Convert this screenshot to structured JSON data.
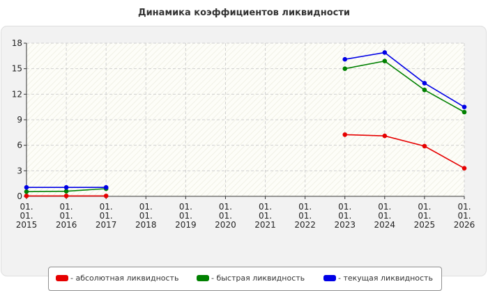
{
  "chart_data": {
    "type": "line",
    "title": "Динамика коэффициентов ликвидности",
    "xlabel": "",
    "ylabel": "",
    "categories": [
      [
        "01.",
        "01.",
        "2015"
      ],
      [
        "01.",
        "01.",
        "2016"
      ],
      [
        "01.",
        "01.",
        "2017"
      ],
      [
        "01.",
        "01.",
        "2018"
      ],
      [
        "01.",
        "01.",
        "2019"
      ],
      [
        "01.",
        "01.",
        "2020"
      ],
      [
        "01.",
        "01.",
        "2021"
      ],
      [
        "01.",
        "01.",
        "2022"
      ],
      [
        "01.",
        "01.",
        "2023"
      ],
      [
        "01.",
        "01.",
        "2024"
      ],
      [
        "01.",
        "01.",
        "2025"
      ],
      [
        "01.",
        "01.",
        "2026"
      ]
    ],
    "ylim": [
      0,
      18
    ],
    "yticks": [
      0,
      3,
      6,
      9,
      12,
      15,
      18
    ],
    "grid": true,
    "legend_position": "bottom",
    "series": [
      {
        "name": "- абсолютная ликвидность",
        "color": "#e60000",
        "values": [
          0.05,
          0.05,
          0.05,
          null,
          null,
          null,
          null,
          null,
          7.25,
          7.1,
          5.9,
          3.3
        ]
      },
      {
        "name": "- быстрая ликвидность",
        "color": "#008000",
        "values": [
          0.55,
          0.6,
          0.9,
          null,
          null,
          null,
          null,
          null,
          15.0,
          15.9,
          12.5,
          9.9
        ]
      },
      {
        "name": "- текущая ликвидность",
        "color": "#0000e6",
        "values": [
          1.05,
          1.05,
          1.05,
          null,
          null,
          null,
          null,
          null,
          16.1,
          16.9,
          13.3,
          10.5
        ]
      }
    ]
  }
}
